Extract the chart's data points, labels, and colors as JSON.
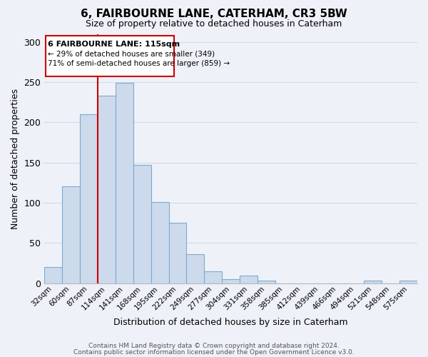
{
  "title": "6, FAIRBOURNE LANE, CATERHAM, CR3 5BW",
  "subtitle": "Size of property relative to detached houses in Caterham",
  "xlabel": "Distribution of detached houses by size in Caterham",
  "ylabel": "Number of detached properties",
  "bar_labels": [
    "32sqm",
    "60sqm",
    "87sqm",
    "114sqm",
    "141sqm",
    "168sqm",
    "195sqm",
    "222sqm",
    "249sqm",
    "277sqm",
    "304sqm",
    "331sqm",
    "358sqm",
    "385sqm",
    "412sqm",
    "439sqm",
    "466sqm",
    "494sqm",
    "521sqm",
    "548sqm",
    "575sqm"
  ],
  "bar_values": [
    20,
    120,
    210,
    233,
    249,
    147,
    101,
    75,
    36,
    15,
    5,
    9,
    3,
    0,
    0,
    0,
    0,
    0,
    3,
    0,
    3
  ],
  "bar_color": "#cddaec",
  "bar_edgecolor": "#7aaad0",
  "ylim": [
    0,
    310
  ],
  "yticks": [
    0,
    50,
    100,
    150,
    200,
    250,
    300
  ],
  "vline_color": "#cc0000",
  "annotation_title": "6 FAIRBOURNE LANE: 115sqm",
  "annotation_line1": "← 29% of detached houses are smaller (349)",
  "annotation_line2": "71% of semi-detached houses are larger (859) →",
  "annotation_box_color": "#cc0000",
  "footnote1": "Contains HM Land Registry data © Crown copyright and database right 2024.",
  "footnote2": "Contains public sector information licensed under the Open Government Licence v3.0.",
  "grid_color": "#d0daea",
  "background_color": "#eef2f8"
}
